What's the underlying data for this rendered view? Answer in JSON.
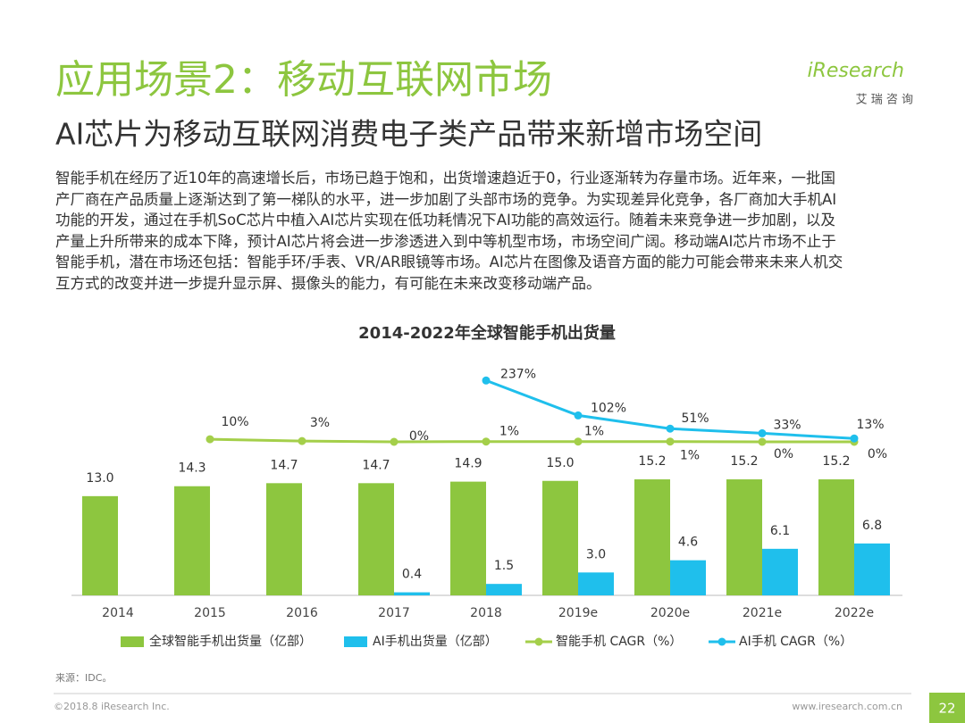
{
  "header": {
    "title": "应用场景2：移动互联网市场",
    "subtitle": "AI芯片为移动互联网消费电子类产品带来新增市场空间",
    "logo": "iResearch",
    "logo_sub": "艾 瑞 咨 询"
  },
  "body": {
    "lines": [
      "智能手机在经历了近10年的高速增长后，市场已趋于饱和，出货增速趋近于0，行业逐渐转为存量市场。近年来，一批国",
      "产厂商在产品质量上逐渐达到了第一梯队的水平，进一步加剧了头部市场的竞争。为实现差异化竞争，各厂商加大手机AI",
      "功能的开发，通过在手机SoC芯片中植入AI芯片实现在低功耗情况下AI功能的高效运行。随着未来竞争进一步加剧，以及",
      "产量上升所带来的成本下降，预计AI芯片将会进一步渗透进入到中等机型市场，市场空间广阔。移动端AI芯片市场不止于",
      "智能手机，潜在市场还包括：智能手环/手表、VR/AR眼镜等市场。AI芯片在图像及语音方面的能力可能会带来未来人机交",
      "互方式的改变并进一步提升显示屏、摄像头的能力，有可能在未来改变移动端产品。"
    ]
  },
  "chart_data": {
    "type": "bar-line",
    "title": "2014-2022年全球智能手机出货量",
    "categories": [
      "2014",
      "2015",
      "2016",
      "2017",
      "2018",
      "2019e",
      "2020e",
      "2021e",
      "2022e"
    ],
    "series": [
      {
        "name": "全球智能手机出货量（亿部）",
        "type": "bar",
        "color": "#8dc63f",
        "values": [
          13,
          14.3,
          14.7,
          14.7,
          14.9,
          15,
          15.2,
          15.2,
          15.2
        ],
        "value_labels": [
          "13.0",
          "14.3",
          "14.7",
          "14.7",
          "14.9",
          "15.0",
          "15.2",
          "15.2",
          "15.2"
        ]
      },
      {
        "name": "AI手机出货量（亿部）",
        "type": "bar",
        "color": "#1fbfec",
        "values": [
          null,
          null,
          null,
          0.4,
          1.5,
          3,
          4.6,
          6.1,
          6.8
        ],
        "value_labels": [
          null,
          null,
          null,
          "0.4",
          "1.5",
          "3.0",
          "4.6",
          "6.1",
          "6.8"
        ]
      },
      {
        "name": "智能手机 CAGR（%）",
        "type": "line",
        "axis": "y2",
        "color": "#a4cf4a",
        "values": [
          null,
          10,
          3,
          0,
          1,
          1,
          1,
          0,
          0
        ],
        "value_labels": [
          null,
          "10%",
          "3%",
          "0%",
          "1%",
          "1%",
          "1%",
          "0%",
          "0%"
        ]
      },
      {
        "name": "AI手机 CAGR（%）",
        "type": "line",
        "axis": "y2",
        "color": "#1fbfec",
        "values": [
          null,
          null,
          null,
          null,
          237,
          102,
          51,
          33,
          13
        ],
        "value_labels": [
          null,
          null,
          null,
          null,
          "237%",
          "102%",
          "51%",
          "33%",
          "13%"
        ]
      }
    ]
  },
  "footer": {
    "source": "来源：IDC。",
    "copyright": "©2018.8 iResearch Inc.",
    "url": "www.iresearch.com.cn",
    "page": "22"
  }
}
